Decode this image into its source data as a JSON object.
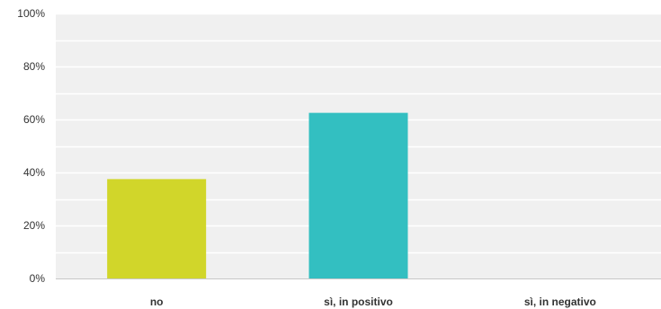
{
  "chart_data": {
    "type": "bar",
    "title": "",
    "xlabel": "",
    "ylabel": "",
    "categories": [
      "no",
      "sì, in positivo",
      "sì, in negativo"
    ],
    "values": [
      37.5,
      62.5,
      0
    ],
    "colors": [
      "#d1d62a",
      "#33bfc1",
      "#c4c4c4"
    ],
    "ylim": [
      0,
      100
    ],
    "y_ticks": [
      {
        "value": 0,
        "label": "0%"
      },
      {
        "value": 20,
        "label": "20%"
      },
      {
        "value": 40,
        "label": "40%"
      },
      {
        "value": 60,
        "label": "60%"
      },
      {
        "value": 80,
        "label": "80%"
      },
      {
        "value": 100,
        "label": "100%"
      }
    ],
    "grid": true,
    "plot_background": "#f0f0f0",
    "gridline_color": "#ffffff",
    "axis_color": "#c8c8c8"
  }
}
